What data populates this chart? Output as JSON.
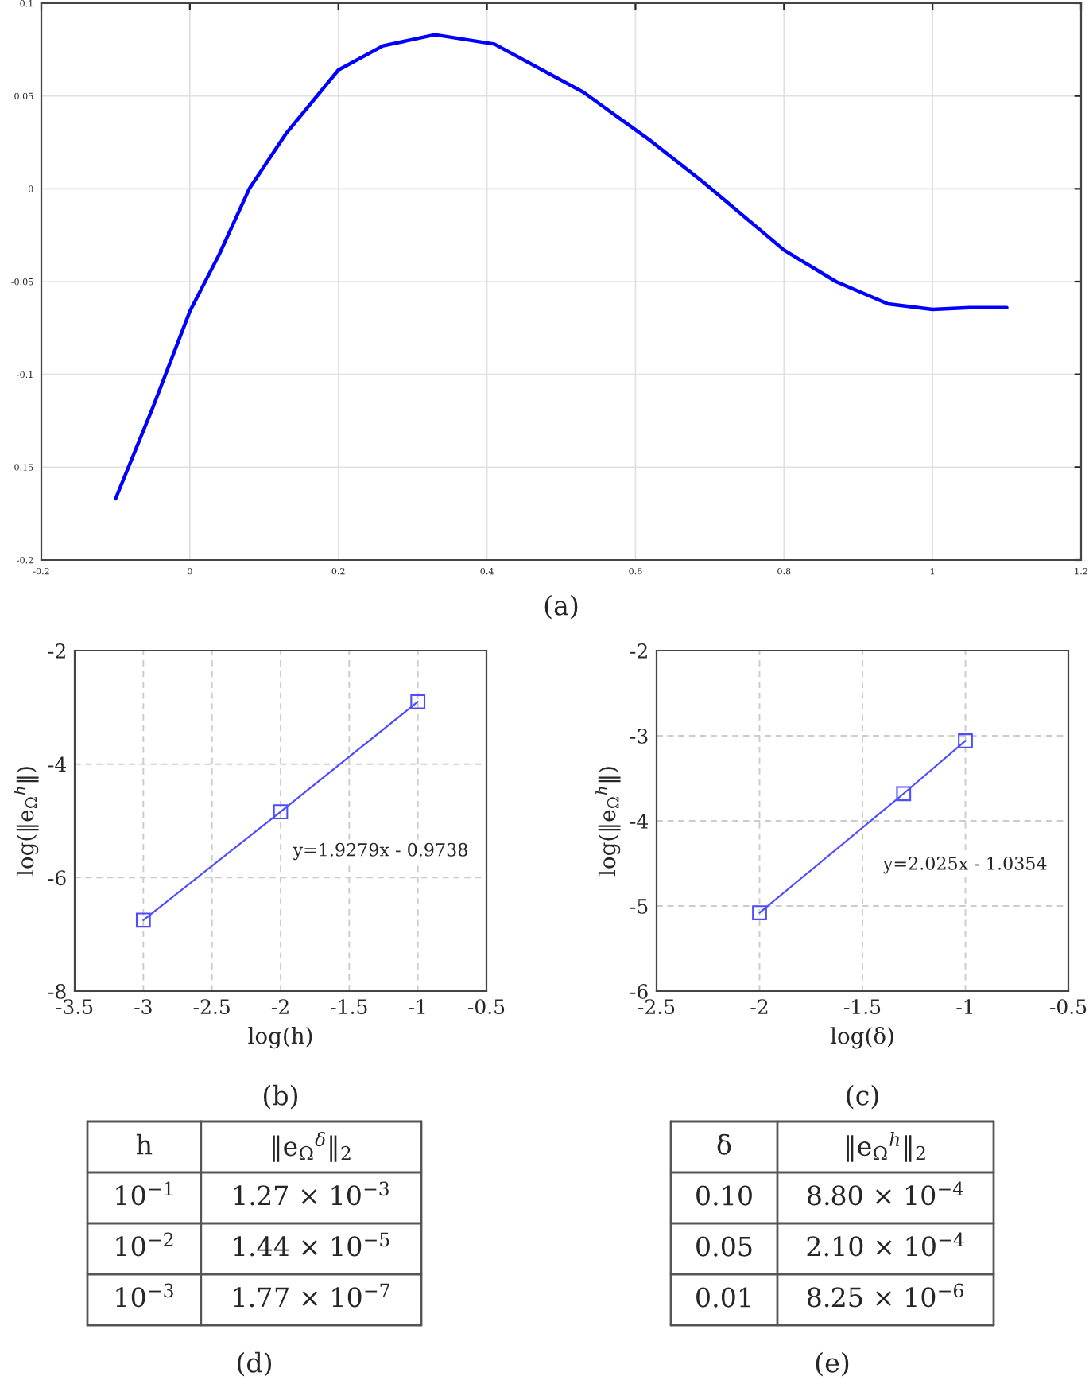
{
  "chart_data": [
    {
      "type": "line",
      "title": "(a)",
      "xlim": [
        -0.2,
        1.2
      ],
      "ylim": [
        -0.2,
        0.1
      ],
      "xticks": [
        -0.2,
        0,
        0.2,
        0.4,
        0.6,
        0.8,
        1,
        1.2
      ],
      "yticks": [
        -0.2,
        -0.15,
        -0.1,
        -0.05,
        0,
        0.05,
        0.1
      ],
      "grid": true,
      "marker": "none",
      "line_style": "solid",
      "series": [
        {
          "color": "#0000ff",
          "x": [
            -0.1,
            -0.05,
            0,
            0.04,
            0.08,
            0.13,
            0.2,
            0.26,
            0.33,
            0.41,
            0.53,
            0.62,
            0.69,
            0.8,
            0.87,
            0.94,
            1.0,
            1.05,
            1.1
          ],
          "values": [
            -0.167,
            -0.118,
            -0.066,
            -0.035,
            0,
            0.03,
            0.064,
            0.077,
            0.083,
            0.078,
            0.052,
            0.026,
            0.004,
            -0.033,
            -0.05,
            -0.062,
            -0.065,
            -0.064,
            -0.064
          ]
        }
      ]
    },
    {
      "type": "line",
      "title": "(b)",
      "xlabel": "log(h)",
      "ylabel": "log(‖e$_{Ω}$$^{h}$‖)",
      "xlim": [
        -3.5,
        -0.5
      ],
      "ylim": [
        -8,
        -2
      ],
      "xticks": [
        -3.5,
        -3,
        -2.5,
        -2,
        -1.5,
        -1,
        -0.5
      ],
      "yticks": [
        -8,
        -6,
        -4,
        -2
      ],
      "grid": true,
      "marker": "square",
      "line_style": "solid",
      "annotations": [
        "y=1.9279x - 0.9738"
      ],
      "series": [
        {
          "color": "#4d4dff",
          "x": [
            -3,
            -2,
            -1
          ],
          "values": [
            -6.75,
            -4.84,
            -2.9
          ]
        }
      ]
    },
    {
      "type": "line",
      "title": "(c)",
      "xlabel": "log(δ)",
      "ylabel": "log(‖e$_{Ω}$$^{h}$‖)",
      "xlim": [
        -2.5,
        -0.5
      ],
      "ylim": [
        -6,
        -2
      ],
      "xticks": [
        -2.5,
        -2,
        -1.5,
        -1,
        -0.5
      ],
      "yticks": [
        -6,
        -5,
        -4,
        -3,
        -2
      ],
      "grid": true,
      "marker": "square",
      "line_style": "solid",
      "annotations": [
        "y=2.025x - 1.0354"
      ],
      "series": [
        {
          "color": "#4d4dff",
          "x": [
            -2,
            -1.3,
            -1
          ],
          "values": [
            -5.08,
            -3.68,
            -3.06
          ]
        }
      ]
    },
    {
      "type": "other",
      "title": "(d)",
      "annotations": [
        "h",
        "‖e$_{Ω}$$^{δ}$‖$_{2}$",
        "10$^{−1}$",
        "1.27 × 10$^{−3}$",
        "10$^{−2}$",
        "1.44 × 10$^{−5}$",
        "10$^{−3}$",
        "1.77 × 10$^{−7}$"
      ]
    },
    {
      "type": "other",
      "title": "(e)",
      "annotations": [
        "δ",
        "‖e$_{Ω}$$^{h}$‖$_{2}$",
        "0.10",
        "8.80 × 10$^{−4}$",
        "0.05",
        "2.10 × 10$^{−4}$",
        "0.01",
        "8.25 × 10$^{−6}$"
      ]
    }
  ]
}
